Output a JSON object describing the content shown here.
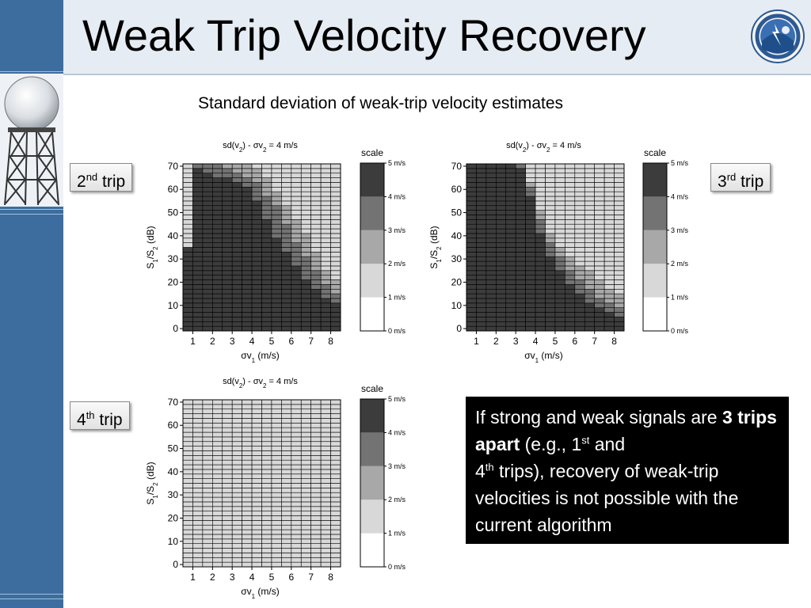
{
  "slide": {
    "title": "Weak Trip Velocity Recovery",
    "subtitle": "Standard deviation of weak-trip velocity estimates",
    "trip_labels": [
      {
        "number": "2",
        "suffix": "nd",
        "word": "trip"
      },
      {
        "number": "3",
        "suffix": "rd",
        "word": "trip"
      },
      {
        "number": "4",
        "suffix": "th",
        "word": "trip"
      }
    ],
    "callout": {
      "text_1": "If strong and weak signals are",
      "bold": "3 trips apart",
      "text_2": " (e.g., 1",
      "sup_1": "st",
      "text_3": " and",
      "text_4": "4",
      "sup_2": "th",
      "text_5": " trips),  recovery of weak-trip velocities is not possible with the current algorithm"
    }
  },
  "chart_data": [
    {
      "type": "heatmap",
      "title": "sd(v2) - σv2 = 4 m/s",
      "xlabel": "σv1 (m/s)",
      "ylabel": "S1/S2 (dB)",
      "x_range": [
        0.5,
        8.5
      ],
      "y_range": [
        -1,
        71
      ],
      "x_ticks": [
        1,
        2,
        3,
        4,
        5,
        6,
        7,
        8
      ],
      "y_ticks": [
        0,
        10,
        20,
        30,
        40,
        50,
        60,
        70
      ],
      "grid_cols": 16,
      "grid_rows": 36,
      "thresholds_db": [
        [
          0,
          1,
          2,
          0
        ],
        [
          0.5,
          1,
          2,
          0
        ],
        [
          1,
          71,
          71,
          71
        ],
        [
          1.5,
          71,
          71,
          68
        ],
        [
          2,
          71,
          71,
          66
        ],
        [
          2.5,
          71,
          71,
          66
        ],
        [
          3,
          71,
          68,
          64
        ],
        [
          3.5,
          71,
          66,
          62
        ],
        [
          4,
          71,
          65,
          60
        ],
        [
          4.5,
          68,
          60,
          52
        ],
        [
          5,
          62,
          56,
          44
        ],
        [
          5.5,
          56,
          50,
          36
        ],
        [
          6,
          50,
          42,
          30
        ],
        [
          6.5,
          44,
          34,
          24
        ],
        [
          7,
          38,
          28,
          20
        ],
        [
          7.5,
          28,
          22,
          16
        ],
        [
          8,
          22,
          16,
          12
        ]
      ],
      "scale_levels": [
        "0 m/s",
        "1 m/s",
        "2 m/s",
        "3 m/s",
        "4 m/s",
        "5 m/s"
      ],
      "scale_label": "scale"
    },
    {
      "type": "heatmap",
      "title": "sd(v2) - σv2 = 4 m/s",
      "xlabel": "σv1 (m/s)",
      "ylabel": "S1/S2 (dB)",
      "x_range": [
        0.5,
        8.5
      ],
      "y_range": [
        -1,
        71
      ],
      "x_ticks": [
        1,
        2,
        3,
        4,
        5,
        6,
        7,
        8
      ],
      "y_ticks": [
        0,
        10,
        20,
        30,
        40,
        50,
        60,
        70
      ],
      "grid_cols": 16,
      "grid_rows": 36,
      "thresholds_db": [
        [
          0,
          71,
          71,
          71
        ],
        [
          0.5,
          71,
          71,
          71
        ],
        [
          1,
          71,
          71,
          71
        ],
        [
          1.5,
          71,
          71,
          71
        ],
        [
          2,
          71,
          71,
          71
        ],
        [
          2.5,
          71,
          71,
          71
        ],
        [
          3,
          71,
          71,
          71
        ],
        [
          3.5,
          71,
          71,
          68
        ],
        [
          4,
          56,
          52,
          46
        ],
        [
          4.5,
          46,
          42,
          36
        ],
        [
          5,
          38,
          34,
          28
        ],
        [
          5.5,
          34,
          28,
          22
        ],
        [
          6,
          30,
          24,
          18
        ],
        [
          6.5,
          26,
          20,
          14
        ],
        [
          7,
          24,
          16,
          10
        ],
        [
          7.5,
          20,
          12,
          8
        ],
        [
          8,
          16,
          10,
          6
        ]
      ],
      "scale_levels": [
        "0 m/s",
        "1 m/s",
        "2 m/s",
        "3 m/s",
        "4 m/s",
        "5 m/s"
      ],
      "scale_label": "scale"
    },
    {
      "type": "heatmap",
      "title": "sd(v2) - σv2 = 4 m/s",
      "xlabel": "σv1 (m/s)",
      "ylabel": "S1/S2 (dB)",
      "x_range": [
        0.5,
        8.5
      ],
      "y_range": [
        -1,
        71
      ],
      "x_ticks": [
        1,
        2,
        3,
        4,
        5,
        6,
        7,
        8
      ],
      "y_ticks": [
        0,
        10,
        20,
        30,
        40,
        50,
        60,
        70
      ],
      "grid_cols": 16,
      "grid_rows": 36,
      "thresholds_db": [
        [
          0,
          -2,
          -2,
          -2
        ],
        [
          8,
          -2,
          -2,
          -2
        ]
      ],
      "scale_levels": [
        "0 m/s",
        "1 m/s",
        "2 m/s",
        "3 m/s",
        "4 m/s",
        "5 m/s"
      ],
      "scale_label": "scale"
    }
  ],
  "colors": {
    "level_0": "#ffffff",
    "level_1": "#d8d8d8",
    "level_2": "#a8a8a8",
    "level_3": "#737373",
    "level_4": "#3c3c3c",
    "sidebar": "#3d6d9e",
    "header": "#e6ecf3",
    "callout_bg": "#000000",
    "callout_text": "#ffffff"
  },
  "icons": {
    "logo": "national-severe-storms-laboratory-seal",
    "sidebar_image": "radar-dome-tower-photo"
  }
}
